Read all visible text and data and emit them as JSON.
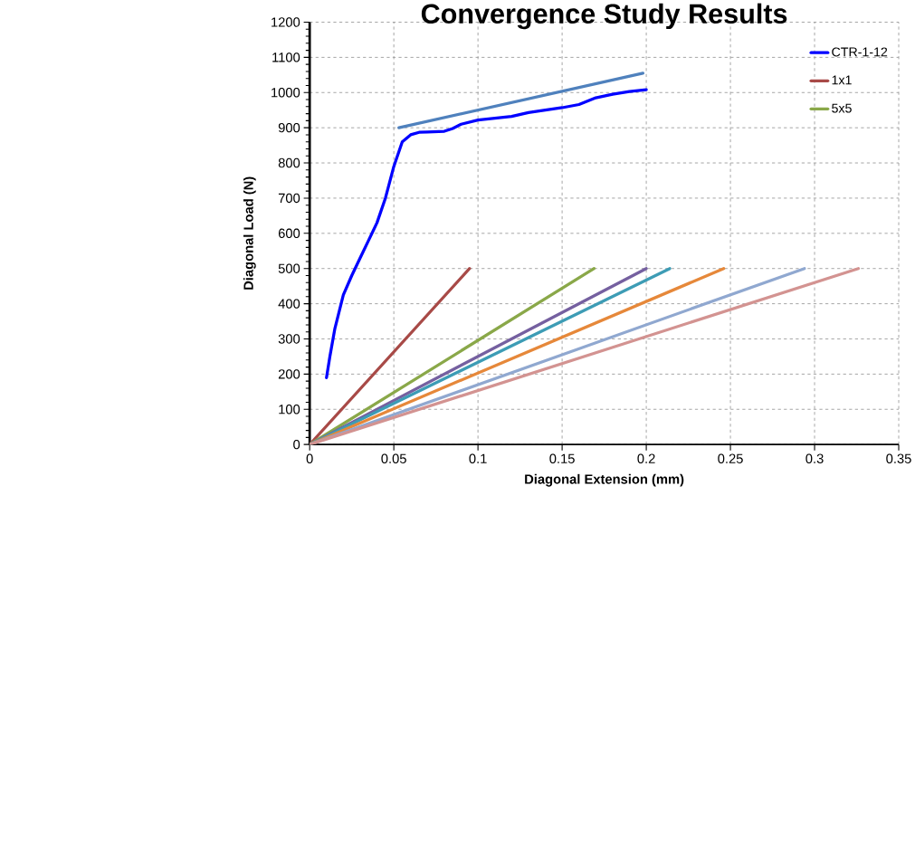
{
  "chart_data": {
    "type": "line",
    "title": "Convergence Study Results",
    "xlabel": "Diagonal Extension (mm)",
    "ylabel": "Diagonal Load (N)",
    "xlim": [
      0,
      0.35
    ],
    "ylim": [
      0,
      1200
    ],
    "xticks": [
      0,
      0.05,
      0.1,
      0.15,
      0.2,
      0.25,
      0.3,
      0.35
    ],
    "yticks": [
      0,
      100,
      200,
      300,
      400,
      500,
      600,
      700,
      800,
      900,
      1000,
      1100,
      1200
    ],
    "grid": true,
    "legend": "top right",
    "marker": "none",
    "line_style": "solid",
    "series": [
      {
        "name": "CTR-1-12",
        "color": "#0000ff",
        "x": [
          0.01,
          0.012,
          0.015,
          0.02,
          0.025,
          0.03,
          0.035,
          0.04,
          0.045,
          0.05,
          0.055,
          0.06,
          0.065,
          0.07,
          0.08,
          0.085,
          0.09,
          0.1,
          0.11,
          0.12,
          0.13,
          0.14,
          0.15,
          0.16,
          0.17,
          0.18,
          0.19,
          0.2
        ],
        "values": [
          190,
          250,
          330,
          425,
          480,
          530,
          580,
          630,
          700,
          790,
          860,
          880,
          887,
          888,
          890,
          898,
          910,
          922,
          927,
          932,
          943,
          950,
          957,
          966,
          985,
          995,
          1003,
          1008
        ]
      },
      {
        "color": "#4f81bd",
        "x": [
          0.053,
          0.198
        ],
        "values": [
          900,
          1055
        ]
      },
      {
        "name": "1x1",
        "color": "#a84a47",
        "x": [
          0,
          0.095
        ],
        "values": [
          0,
          500
        ]
      },
      {
        "name": "5x5",
        "color": "#8aa849",
        "x": [
          0,
          0.169
        ],
        "values": [
          0,
          500
        ]
      },
      {
        "color": "#7560a0",
        "x": [
          0,
          0.2
        ],
        "values": [
          0,
          500
        ]
      },
      {
        "color": "#3d9cb5",
        "x": [
          0,
          0.214
        ],
        "values": [
          0,
          500
        ]
      },
      {
        "color": "#e6883a",
        "x": [
          0,
          0.246
        ],
        "values": [
          0,
          500
        ]
      },
      {
        "color": "#90a8d0",
        "x": [
          0,
          0.294
        ],
        "values": [
          0,
          500
        ]
      },
      {
        "color": "#d39391",
        "x": [
          0,
          0.326
        ],
        "values": [
          0,
          500
        ]
      }
    ]
  }
}
